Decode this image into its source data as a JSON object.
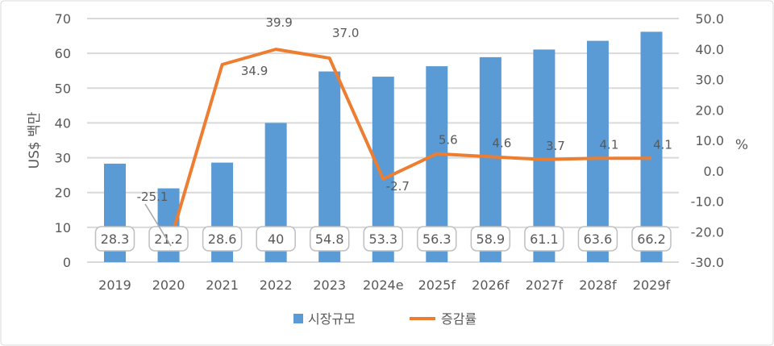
{
  "chart_data": {
    "type": "bar+line",
    "categories": [
      "2019",
      "2020",
      "2021",
      "2022",
      "2023",
      "2024e",
      "2025f",
      "2026f",
      "2027f",
      "2028f",
      "2029f"
    ],
    "series": [
      {
        "name": "시장규모",
        "type": "bar",
        "axis": "left",
        "color": "#5B9BD5",
        "values": [
          28.3,
          21.2,
          28.6,
          40,
          54.8,
          53.3,
          56.3,
          58.9,
          61.1,
          63.6,
          66.2
        ],
        "labels": [
          "28.3",
          "21.2",
          "28.6",
          "40",
          "54.8",
          "53.3",
          "56.3",
          "58.9",
          "61.1",
          "63.6",
          "66.2"
        ]
      },
      {
        "name": "증감률",
        "type": "line",
        "axis": "right",
        "color": "#ED7D31",
        "values": [
          null,
          -25.1,
          34.9,
          39.9,
          37.0,
          -2.7,
          5.6,
          4.6,
          3.7,
          4.1,
          4.1
        ],
        "labels": [
          "",
          "-25.1",
          "34.9",
          "39.9",
          "37.0",
          "-2.7",
          "5.6",
          "4.6",
          "3.7",
          "4.1",
          "4.1"
        ]
      }
    ],
    "ylabel": "US$ 백만",
    "y2label": "%",
    "ylim": [
      0,
      70
    ],
    "y2lim": [
      -30,
      50
    ],
    "yticks": [
      "0",
      "10",
      "20",
      "30",
      "40",
      "50",
      "60",
      "70"
    ],
    "y2ticks": [
      "-30.0",
      "-20.0",
      "-10.0",
      "0.0",
      "10.0",
      "20.0",
      "30.0",
      "40.0",
      "50.0"
    ],
    "grid": true,
    "legend": "bottom"
  }
}
